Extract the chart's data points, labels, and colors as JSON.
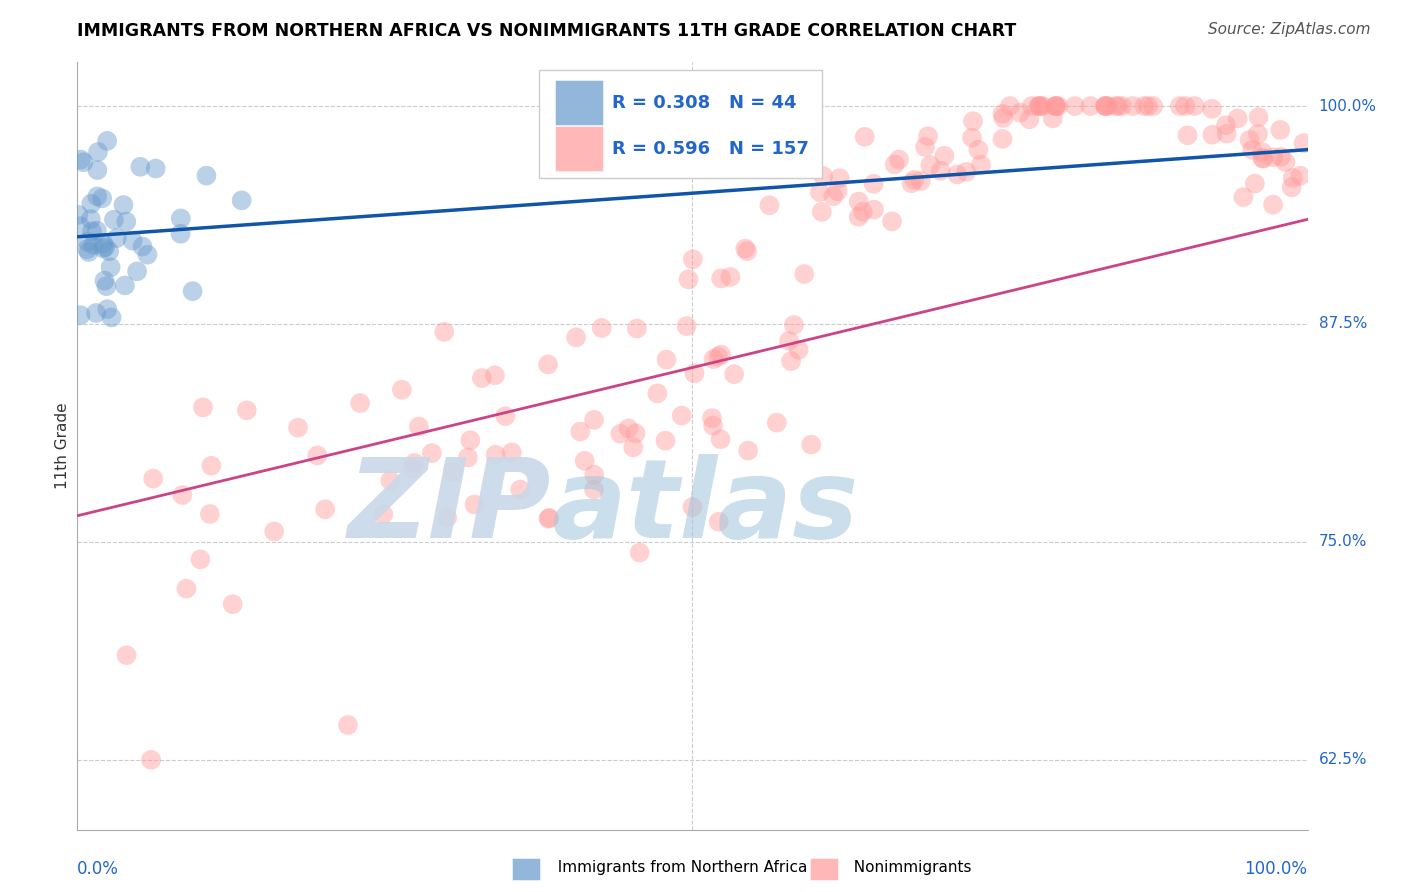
{
  "title": "IMMIGRANTS FROM NORTHERN AFRICA VS NONIMMIGRANTS 11TH GRADE CORRELATION CHART",
  "source_text": "Source: ZipAtlas.com",
  "ylabel": "11th Grade",
  "yaxis_labels": [
    "62.5%",
    "75.0%",
    "87.5%",
    "100.0%"
  ],
  "yaxis_values": [
    0.625,
    0.75,
    0.875,
    1.0
  ],
  "xmin": 0.0,
  "xmax": 1.0,
  "ymin": 0.585,
  "ymax": 1.025,
  "blue_R": 0.308,
  "blue_N": 44,
  "pink_R": 0.596,
  "pink_N": 157,
  "blue_color": "#6699CC",
  "pink_color": "#FF9999",
  "blue_line_color": "#1155AA",
  "pink_line_color": "#CC4488",
  "legend_label_blue": "Immigrants from Northern Africa",
  "legend_label_pink": "Nonimmigrants",
  "grid_color": "#CCCCCC",
  "blue_line_x0": 0.0,
  "blue_line_x1": 1.0,
  "blue_line_y0": 0.925,
  "blue_line_y1": 0.975,
  "pink_line_x0": 0.0,
  "pink_line_x1": 1.0,
  "pink_line_y0": 0.765,
  "pink_line_y1": 0.935
}
